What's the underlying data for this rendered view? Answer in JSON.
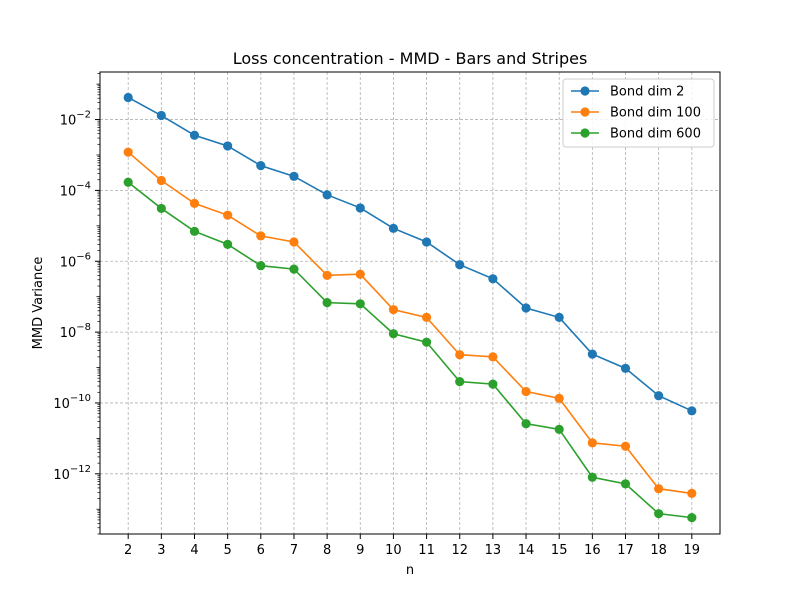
{
  "chart_data": {
    "type": "line",
    "title": "Loss concentration - MMD - Bars and Stripes",
    "xlabel": "n",
    "ylabel": "MMD Variance",
    "yscale": "log",
    "x": [
      2,
      3,
      4,
      5,
      6,
      7,
      8,
      9,
      10,
      11,
      12,
      13,
      14,
      15,
      16,
      17,
      18,
      19
    ],
    "x_ticks": [
      "2",
      "3",
      "4",
      "5",
      "6",
      "7",
      "8",
      "9",
      "10",
      "11",
      "12",
      "13",
      "14",
      "15",
      "16",
      "17",
      "18",
      "19"
    ],
    "xlim": [
      1.15,
      19.85
    ],
    "ylim": [
      2e-14,
      0.22
    ],
    "y_ticks": [
      {
        "exp": -12,
        "base": "10",
        "sup": "−12"
      },
      {
        "exp": -10,
        "base": "10",
        "sup": "−10"
      },
      {
        "exp": -8,
        "base": "10",
        "sup": "−8"
      },
      {
        "exp": -6,
        "base": "10",
        "sup": "−6"
      },
      {
        "exp": -4,
        "base": "10",
        "sup": "−4"
      },
      {
        "exp": -2,
        "base": "10",
        "sup": "−2"
      }
    ],
    "grid": true,
    "legend_position": "top-right",
    "series": [
      {
        "name": "Bond dim 2",
        "color": "#1f77b4",
        "values": [
          0.042,
          0.013,
          0.0036,
          0.0018,
          0.0005,
          0.00025,
          7.5e-05,
          3.2e-05,
          8.5e-06,
          3.5e-06,
          8e-07,
          3.2e-07,
          4.8e-08,
          2.6e-08,
          2.4e-09,
          9.5e-10,
          1.6e-10,
          6e-11
        ]
      },
      {
        "name": "Bond dim 100",
        "color": "#ff7f0e",
        "values": [
          0.0012,
          0.00019,
          4.3e-05,
          2e-05,
          5.2e-06,
          3.5e-06,
          4e-07,
          4.3e-07,
          4.3e-08,
          2.6e-08,
          2.3e-09,
          2e-09,
          2.1e-10,
          1.35e-10,
          7.5e-12,
          6e-12,
          3.8e-13,
          2.8e-13
        ]
      },
      {
        "name": "Bond dim 600",
        "color": "#2ca02c",
        "values": [
          0.00017,
          3.1e-05,
          7e-06,
          3e-06,
          7.5e-07,
          6e-07,
          6.8e-08,
          6.3e-08,
          9e-09,
          5.2e-09,
          4e-10,
          3.4e-10,
          2.6e-11,
          1.8e-11,
          8e-13,
          5.2e-13,
          7.5e-14,
          5.8e-14
        ]
      }
    ]
  }
}
